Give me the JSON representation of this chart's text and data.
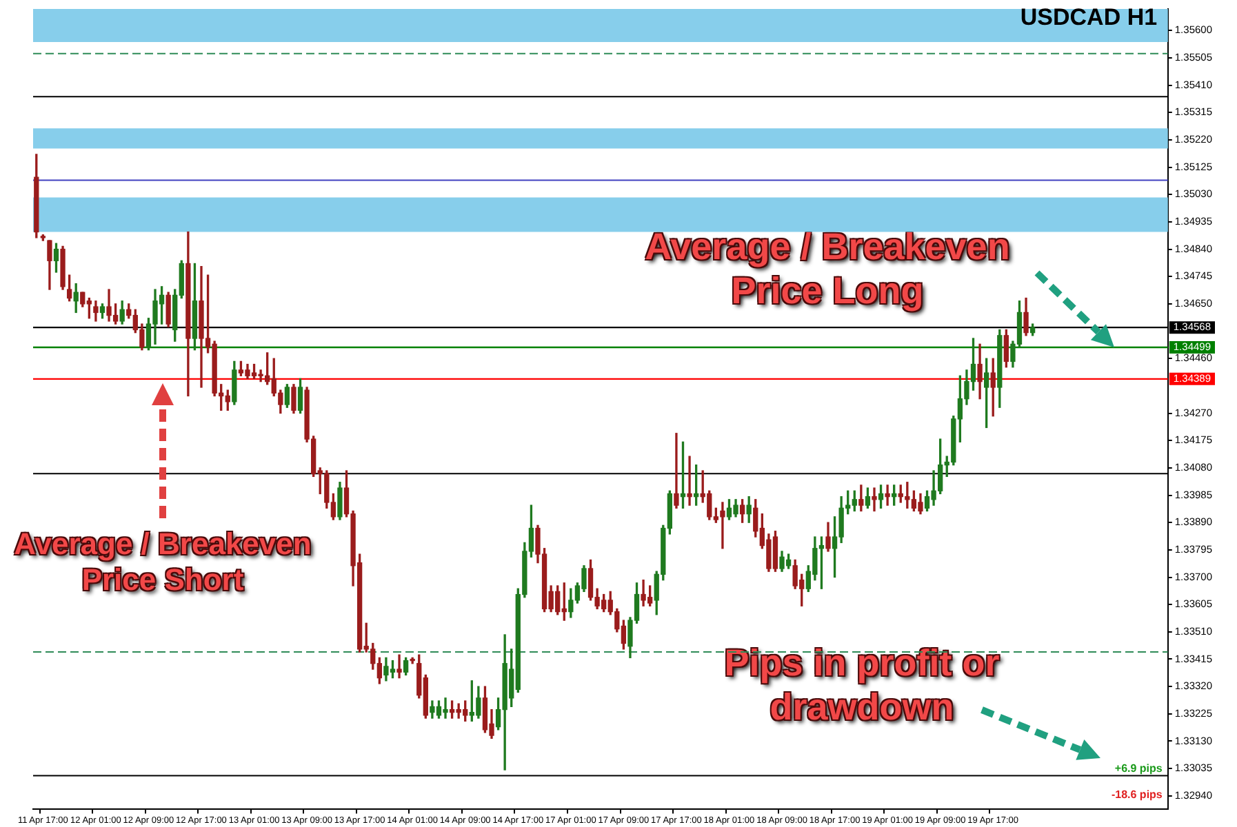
{
  "chart_data": {
    "type": "candlestick",
    "title": "USDCAD H1",
    "categories": [
      null,
      "11 Apr 17:00",
      null,
      null,
      null,
      null,
      null,
      null,
      null,
      "12 Apr 01:00",
      null,
      null,
      null,
      null,
      null,
      null,
      null,
      "12 Apr 09:00",
      null,
      null,
      null,
      null,
      null,
      null,
      null,
      "12 Apr 17:00",
      null,
      null,
      null,
      null,
      null,
      null,
      null,
      "13 Apr 01:00",
      null,
      null,
      null,
      null,
      null,
      null,
      null,
      "13 Apr 09:00",
      null,
      null,
      null,
      null,
      null,
      null,
      null,
      "13 Apr 17:00",
      null,
      null,
      null,
      null,
      null,
      null,
      null,
      "14 Apr 01:00",
      null,
      null,
      null,
      null,
      null,
      null,
      null,
      "14 Apr 09:00",
      null,
      null,
      null,
      null,
      null,
      null,
      null,
      "14 Apr 17:00",
      null,
      null,
      null,
      null,
      null,
      null,
      null,
      "17 Apr 01:00",
      null,
      null,
      null,
      null,
      null,
      null,
      null,
      "17 Apr 09:00",
      null,
      null,
      null,
      null,
      null,
      null,
      null,
      "17 Apr 17:00",
      null,
      null,
      null,
      null,
      null,
      null,
      null,
      "18 Apr 01:00",
      null,
      null,
      null,
      null,
      null,
      null,
      null,
      "18 Apr 09:00",
      null,
      null,
      null,
      null,
      null,
      null,
      null,
      "18 Apr 17:00",
      null,
      null,
      null,
      null,
      null,
      null,
      null,
      "19 Apr 01:00",
      null,
      null,
      null,
      null,
      null,
      null,
      null,
      "19 Apr 09:00",
      null,
      null,
      null,
      null,
      null,
      null,
      null,
      "19 Apr 17:00",
      null,
      null,
      null,
      null,
      null,
      null,
      null,
      null,
      null,
      null,
      null,
      null,
      null,
      null,
      null,
      null,
      null,
      null,
      null,
      null,
      null,
      null,
      null,
      null,
      null,
      null
    ],
    "ohlc": [
      [
        1.3509,
        1.3517,
        1.3488,
        1.349
      ],
      [
        1.3488,
        1.3489,
        1.3487,
        1.3488
      ],
      [
        1.3487,
        1.3487,
        1.347,
        1.348
      ],
      [
        1.348,
        1.3486,
        1.3476,
        1.3484
      ],
      [
        1.3484,
        1.3485,
        1.347,
        1.3471
      ],
      [
        1.347,
        1.3475,
        1.3466,
        1.3467
      ],
      [
        1.3466,
        1.3472,
        1.3462,
        1.3469
      ],
      [
        1.3469,
        1.3469,
        1.3464,
        1.3465
      ],
      [
        1.3466,
        1.3467,
        1.346,
        1.3465
      ],
      [
        1.3464,
        1.3466,
        1.3459,
        1.3462
      ],
      [
        1.3462,
        1.3465,
        1.346,
        1.3464
      ],
      [
        1.3464,
        1.347,
        1.3459,
        1.3461
      ],
      [
        1.3461,
        1.3465,
        1.3458,
        1.3459
      ],
      [
        1.3459,
        1.3466,
        1.3458,
        1.3463
      ],
      [
        1.3463,
        1.3465,
        1.346,
        1.3461
      ],
      [
        1.3461,
        1.3463,
        1.3455,
        1.3456
      ],
      [
        1.3456,
        1.3458,
        1.3449,
        1.345
      ],
      [
        1.345,
        1.346,
        1.3449,
        1.3458
      ],
      [
        1.3458,
        1.347,
        1.3451,
        1.3466
      ],
      [
        1.3465,
        1.3471,
        1.3458,
        1.3468
      ],
      [
        1.3468,
        1.3469,
        1.3457,
        1.3458
      ],
      [
        1.3456,
        1.347,
        1.3452,
        1.3468
      ],
      [
        1.3468,
        1.348,
        1.3467,
        1.3479
      ],
      [
        1.3479,
        1.349,
        1.3433,
        1.3453
      ],
      [
        1.3453,
        1.3479,
        1.3449,
        1.3466
      ],
      [
        1.3466,
        1.3478,
        1.3436,
        1.3453
      ],
      [
        1.3453,
        1.3475,
        1.3448,
        1.345
      ],
      [
        1.3451,
        1.3452,
        1.3433,
        1.3434
      ],
      [
        1.3434,
        1.3437,
        1.3428,
        1.3433
      ],
      [
        1.3433,
        1.3435,
        1.3428,
        1.3431
      ],
      [
        1.3431,
        1.3445,
        1.343,
        1.3442
      ],
      [
        1.3442,
        1.3445,
        1.344,
        1.3441
      ],
      [
        1.3442,
        1.3444,
        1.3439,
        1.344
      ],
      [
        1.3441,
        1.3444,
        1.3439,
        1.344
      ],
      [
        1.344,
        1.3442,
        1.3438,
        1.344
      ],
      [
        1.344,
        1.3448,
        1.3437,
        1.3438
      ],
      [
        1.3439,
        1.3446,
        1.3433,
        1.3434
      ],
      [
        1.3434,
        1.3435,
        1.3427,
        1.343
      ],
      [
        1.343,
        1.3437,
        1.3429,
        1.3436
      ],
      [
        1.3436,
        1.3437,
        1.3427,
        1.3428
      ],
      [
        1.3428,
        1.3439,
        1.3427,
        1.3436
      ],
      [
        1.3435,
        1.3436,
        1.3417,
        1.3418
      ],
      [
        1.3418,
        1.3419,
        1.3405,
        1.3406
      ],
      [
        1.3407,
        1.3408,
        1.3399,
        1.3406
      ],
      [
        1.3406,
        1.3407,
        1.3394,
        1.3396
      ],
      [
        1.3396,
        1.3399,
        1.339,
        1.3391
      ],
      [
        1.3391,
        1.3403,
        1.339,
        1.3401
      ],
      [
        1.3401,
        1.3407,
        1.3391,
        1.3392
      ],
      [
        1.3392,
        1.3393,
        1.3367,
        1.3374
      ],
      [
        1.3375,
        1.3378,
        1.3344,
        1.3345
      ],
      [
        1.3346,
        1.3354,
        1.3344,
        1.3345
      ],
      [
        1.3345,
        1.3347,
        1.3338,
        1.334
      ],
      [
        1.334,
        1.3342,
        1.3333,
        1.3335
      ],
      [
        1.3336,
        1.3342,
        1.3334,
        1.3339
      ],
      [
        1.3337,
        1.3341,
        1.3335,
        1.3338
      ],
      [
        1.3338,
        1.3343,
        1.3335,
        1.3337
      ],
      [
        1.3337,
        1.3342,
        1.3336,
        1.3341
      ],
      [
        1.3341,
        1.3342,
        1.334,
        1.3341
      ],
      [
        1.334,
        1.3343,
        1.3328,
        1.3329
      ],
      [
        1.3335,
        1.3336,
        1.3321,
        1.3322
      ],
      [
        1.3323,
        1.3327,
        1.3321,
        1.3325
      ],
      [
        1.3322,
        1.3327,
        1.3321,
        1.3325
      ],
      [
        1.3323,
        1.3328,
        1.3321,
        1.3324
      ],
      [
        1.3324,
        1.3327,
        1.3321,
        1.3323
      ],
      [
        1.3324,
        1.3326,
        1.3321,
        1.3323
      ],
      [
        1.3324,
        1.3327,
        1.332,
        1.3322
      ],
      [
        1.3322,
        1.3334,
        1.332,
        1.3323
      ],
      [
        1.3322,
        1.3332,
        1.3321,
        1.3328
      ],
      [
        1.3328,
        1.3332,
        1.3316,
        1.3317
      ],
      [
        1.3319,
        1.3324,
        1.3314,
        1.3315
      ],
      [
        1.3318,
        1.3328,
        1.3317,
        1.3324
      ],
      [
        1.3324,
        1.335,
        1.3303,
        1.334
      ],
      [
        1.3328,
        1.3345,
        1.3325,
        1.3338
      ],
      [
        1.3331,
        1.3366,
        1.333,
        1.3364
      ],
      [
        1.3364,
        1.3382,
        1.3363,
        1.3379
      ],
      [
        1.3379,
        1.3395,
        1.3377,
        1.3387
      ],
      [
        1.3387,
        1.3388,
        1.3375,
        1.3378
      ],
      [
        1.3378,
        1.338,
        1.3358,
        1.3359
      ],
      [
        1.3365,
        1.3367,
        1.3358,
        1.3359
      ],
      [
        1.3365,
        1.3367,
        1.3357,
        1.3358
      ],
      [
        1.3359,
        1.3368,
        1.3355,
        1.3358
      ],
      [
        1.3358,
        1.3366,
        1.3356,
        1.3362
      ],
      [
        1.3362,
        1.3368,
        1.3361,
        1.3367
      ],
      [
        1.3366,
        1.3374,
        1.3365,
        1.3373
      ],
      [
        1.3373,
        1.3376,
        1.3362,
        1.3363
      ],
      [
        1.3363,
        1.3366,
        1.3359,
        1.336
      ],
      [
        1.3362,
        1.3364,
        1.3358,
        1.3359
      ],
      [
        1.3362,
        1.3365,
        1.3357,
        1.3358
      ],
      [
        1.3358,
        1.3359,
        1.3351,
        1.3352
      ],
      [
        1.3353,
        1.3355,
        1.3345,
        1.3347
      ],
      [
        1.3346,
        1.3356,
        1.3342,
        1.3355
      ],
      [
        1.3355,
        1.3368,
        1.3354,
        1.3364
      ],
      [
        1.3364,
        1.3369,
        1.336,
        1.3362
      ],
      [
        1.3363,
        1.3367,
        1.336,
        1.3361
      ],
      [
        1.3362,
        1.3372,
        1.3357,
        1.3371
      ],
      [
        1.3371,
        1.3388,
        1.3369,
        1.3387
      ],
      [
        1.3387,
        1.34,
        1.3385,
        1.3399
      ],
      [
        1.3399,
        1.342,
        1.3394,
        1.3395
      ],
      [
        1.3398,
        1.3417,
        1.3394,
        1.3399
      ],
      [
        1.3399,
        1.3412,
        1.3395,
        1.3398
      ],
      [
        1.3398,
        1.3409,
        1.3395,
        1.3399
      ],
      [
        1.3399,
        1.3407,
        1.3396,
        1.3398
      ],
      [
        1.3399,
        1.34,
        1.339,
        1.3391
      ],
      [
        1.3391,
        1.3394,
        1.3389,
        1.339
      ],
      [
        1.3393,
        1.3396,
        1.338,
        1.3391
      ],
      [
        1.3391,
        1.3397,
        1.339,
        1.3394
      ],
      [
        1.3392,
        1.3397,
        1.3391,
        1.3395
      ],
      [
        1.3395,
        1.3397,
        1.3389,
        1.3392
      ],
      [
        1.3392,
        1.3398,
        1.3389,
        1.3395
      ],
      [
        1.3394,
        1.3397,
        1.3384,
        1.3386
      ],
      [
        1.3387,
        1.3392,
        1.338,
        1.3381
      ],
      [
        1.3383,
        1.3385,
        1.3372,
        1.3373
      ],
      [
        1.3384,
        1.3386,
        1.3372,
        1.3373
      ],
      [
        1.3373,
        1.3379,
        1.3372,
        1.3377
      ],
      [
        1.3374,
        1.3378,
        1.3373,
        1.3376
      ],
      [
        1.3374,
        1.3376,
        1.3366,
        1.3367
      ],
      [
        1.3369,
        1.3371,
        1.336,
        1.3366
      ],
      [
        1.3366,
        1.3374,
        1.3365,
        1.3372
      ],
      [
        1.3371,
        1.3384,
        1.3369,
        1.338
      ],
      [
        1.338,
        1.3384,
        1.3366,
        1.3381
      ],
      [
        1.3384,
        1.3389,
        1.3379,
        1.338
      ],
      [
        1.338,
        1.3391,
        1.337,
        1.3384
      ],
      [
        1.3384,
        1.3398,
        1.3382,
        1.3394
      ],
      [
        1.3394,
        1.34,
        1.3392,
        1.3395
      ],
      [
        1.3395,
        1.34,
        1.3393,
        1.3397
      ],
      [
        1.3397,
        1.3402,
        1.3393,
        1.3395
      ],
      [
        1.3395,
        1.3401,
        1.3394,
        1.3398
      ],
      [
        1.3398,
        1.3401,
        1.3393,
        1.3397
      ],
      [
        1.3397,
        1.3402,
        1.3394,
        1.3399
      ],
      [
        1.3399,
        1.3402,
        1.3395,
        1.3398
      ],
      [
        1.3398,
        1.3402,
        1.3395,
        1.3399
      ],
      [
        1.3399,
        1.3402,
        1.3396,
        1.3398
      ],
      [
        1.3398,
        1.3403,
        1.3394,
        1.3397
      ],
      [
        1.3397,
        1.34,
        1.3393,
        1.3394
      ],
      [
        1.3396,
        1.3399,
        1.3392,
        1.3393
      ],
      [
        1.3394,
        1.34,
        1.3393,
        1.3398
      ],
      [
        1.3397,
        1.3407,
        1.3395,
        1.34
      ],
      [
        1.34,
        1.3418,
        1.3399,
        1.3409
      ],
      [
        1.3409,
        1.3412,
        1.3405,
        1.341
      ],
      [
        1.341,
        1.3426,
        1.3409,
        1.3425
      ],
      [
        1.3425,
        1.344,
        1.3417,
        1.3432
      ],
      [
        1.3432,
        1.3442,
        1.343,
        1.3438
      ],
      [
        1.3438,
        1.3453,
        1.3435,
        1.3444
      ],
      [
        1.3444,
        1.3451,
        1.3432,
        1.3438
      ],
      [
        1.3436,
        1.3446,
        1.3422,
        1.3441
      ],
      [
        1.3441,
        1.3446,
        1.3426,
        1.3436
      ],
      [
        1.3436,
        1.3456,
        1.3429,
        1.3454
      ],
      [
        1.3454,
        1.3456,
        1.3443,
        1.3445
      ],
      [
        1.3445,
        1.3452,
        1.3443,
        1.3451
      ],
      [
        1.3451,
        1.3466,
        1.345,
        1.3462
      ],
      [
        1.3462,
        1.3467,
        1.3454,
        1.3455
      ],
      [
        1.3455,
        1.3458,
        1.3454,
        1.34568
      ],
      null,
      null,
      null,
      null,
      null,
      null,
      null,
      null,
      null,
      null,
      null,
      null,
      null,
      null,
      null,
      null,
      null,
      null,
      null,
      null
    ],
    "colors": [
      "#9a1c1c",
      "#9a1c1c",
      "#9a1c1c",
      "#1f7a1f",
      "#9a1c1c",
      "#9a1c1c",
      "#1f7a1f",
      "#9a1c1c",
      "#9a1c1c",
      "#9a1c1c",
      "#1f7a1f",
      "#9a1c1c",
      "#9a1c1c",
      "#1f7a1f",
      "#9a1c1c",
      "#9a1c1c",
      "#9a1c1c",
      "#1f7a1f",
      "#1f7a1f",
      "#1f7a1f",
      "#9a1c1c",
      "#1f7a1f",
      "#1f7a1f",
      "#9a1c1c",
      "#1f7a1f",
      "#9a1c1c",
      "#9a1c1c",
      "#9a1c1c",
      "#9a1c1c",
      "#9a1c1c",
      "#1f7a1f",
      "#9a1c1c",
      "#9a1c1c",
      "#9a1c1c",
      "#9a1c1c",
      "#9a1c1c",
      "#9a1c1c",
      "#9a1c1c",
      "#1f7a1f",
      "#9a1c1c",
      "#1f7a1f",
      "#9a1c1c",
      "#9a1c1c",
      "#9a1c1c",
      "#9a1c1c",
      "#9a1c1c",
      "#1f7a1f",
      "#9a1c1c",
      "#9a1c1c",
      "#9a1c1c",
      "#9a1c1c",
      "#9a1c1c",
      "#9a1c1c",
      "#1f7a1f",
      "#1f7a1f",
      "#9a1c1c",
      "#1f7a1f",
      "#9a1c1c",
      "#9a1c1c",
      "#9a1c1c",
      "#1f7a1f",
      "#1f7a1f",
      "#1f7a1f",
      "#9a1c1c",
      "#9a1c1c",
      "#9a1c1c",
      "#1f7a1f",
      "#1f7a1f",
      "#9a1c1c",
      "#9a1c1c",
      "#1f7a1f",
      "#1f7a1f",
      "#1f7a1f",
      "#1f7a1f",
      "#1f7a1f",
      "#1f7a1f",
      "#9a1c1c",
      "#9a1c1c",
      "#9a1c1c",
      "#9a1c1c",
      "#9a1c1c",
      "#1f7a1f",
      "#1f7a1f",
      "#1f7a1f",
      "#9a1c1c",
      "#9a1c1c",
      "#9a1c1c",
      "#9a1c1c",
      "#9a1c1c",
      "#9a1c1c",
      "#1f7a1f",
      "#1f7a1f",
      "#9a1c1c",
      "#9a1c1c",
      "#1f7a1f",
      "#1f7a1f",
      "#1f7a1f",
      "#9a1c1c",
      "#1f7a1f",
      "#9a1c1c",
      "#1f7a1f",
      "#9a1c1c",
      "#9a1c1c",
      "#9a1c1c",
      "#9a1c1c",
      "#1f7a1f",
      "#1f7a1f",
      "#9a1c1c",
      "#1f7a1f",
      "#9a1c1c",
      "#9a1c1c",
      "#9a1c1c",
      "#9a1c1c",
      "#1f7a1f",
      "#1f7a1f",
      "#9a1c1c",
      "#9a1c1c",
      "#1f7a1f",
      "#1f7a1f",
      "#1f7a1f",
      "#9a1c1c",
      "#1f7a1f",
      "#1f7a1f",
      "#1f7a1f",
      "#1f7a1f",
      "#9a1c1c",
      "#1f7a1f",
      "#9a1c1c",
      "#1f7a1f",
      "#9a1c1c",
      "#1f7a1f",
      "#9a1c1c",
      "#9a1c1c",
      "#9a1c1c",
      "#9a1c1c",
      "#1f7a1f",
      "#1f7a1f",
      "#1f7a1f",
      "#1f7a1f",
      "#1f7a1f",
      "#1f7a1f",
      "#1f7a1f",
      "#1f7a1f",
      "#9a1c1c",
      "#1f7a1f",
      "#9a1c1c",
      "#1f7a1f",
      "#9a1c1c",
      "#1f7a1f",
      "#1f7a1f",
      "#9a1c1c",
      "#1f7a1f",
      null,
      null,
      null,
      null,
      null,
      null,
      null,
      null,
      null,
      null,
      null,
      null,
      null,
      null,
      null,
      null,
      null,
      null,
      null,
      null
    ],
    "ylim": [
      1.32893,
      1.35675
    ],
    "yticks": [
      {
        "value": 1.3294,
        "label": "1.32940"
      },
      {
        "value": 1.33035,
        "label": "1.33035"
      },
      {
        "value": 1.3313,
        "label": "1.33130"
      },
      {
        "value": 1.33225,
        "label": "1.33225"
      },
      {
        "value": 1.3332,
        "label": "1.33320"
      },
      {
        "value": 1.33415,
        "label": "1.33415"
      },
      {
        "value": 1.3351,
        "label": "1.33510"
      },
      {
        "value": 1.33605,
        "label": "1.33605"
      },
      {
        "value": 1.337,
        "label": "1.33700"
      },
      {
        "value": 1.33795,
        "label": "1.33795"
      },
      {
        "value": 1.3389,
        "label": "1.33890"
      },
      {
        "value": 1.33985,
        "label": "1.33985"
      },
      {
        "value": 1.3408,
        "label": "1.34080"
      },
      {
        "value": 1.34175,
        "label": "1.34175"
      },
      {
        "value": 1.3427,
        "label": "1.34270"
      },
      {
        "value": 1.3446,
        "label": "1.34460"
      },
      {
        "value": 1.3465,
        "label": "1.34650"
      },
      {
        "value": 1.34745,
        "label": "1.34745"
      },
      {
        "value": 1.3484,
        "label": "1.34840"
      },
      {
        "value": 1.34935,
        "label": "1.34935"
      },
      {
        "value": 1.3503,
        "label": "1.35030"
      },
      {
        "value": 1.35125,
        "label": "1.35125"
      },
      {
        "value": 1.3522,
        "label": "1.35220"
      },
      {
        "value": 1.35315,
        "label": "1.35315"
      },
      {
        "value": 1.3541,
        "label": "1.35410"
      },
      {
        "value": 1.35505,
        "label": "1.35505"
      },
      {
        "value": 1.356,
        "label": "1.35600"
      }
    ],
    "ref_lines": [
      {
        "axis": "y",
        "value": 1.34568,
        "label": "1.34568",
        "color": "#000000"
      },
      {
        "axis": "y",
        "value": 1.34499,
        "label": "1.34499",
        "color": "#008000"
      },
      {
        "axis": "y",
        "value": 1.34389,
        "label": "1.34389",
        "color": "#ff0000"
      },
      {
        "axis": "y",
        "value": 1.3537,
        "color": "#000000"
      },
      {
        "axis": "y",
        "value": 1.3406,
        "color": "#000000"
      },
      {
        "axis": "y",
        "value": 1.3301,
        "color": "#000000"
      },
      {
        "axis": "y",
        "value": 1.3508,
        "color": "#4040c0"
      },
      {
        "axis": "y",
        "value": 1.3552,
        "color": "#2e8b57",
        "line_style": "dashed"
      },
      {
        "axis": "y",
        "value": 1.3344,
        "color": "#2e8b57",
        "line_style": "dashed"
      }
    ],
    "bands": [
      {
        "axis": "y",
        "from": 1.3556,
        "to": 1.35675,
        "color": "#87ceeb"
      },
      {
        "axis": "y",
        "from": 1.3519,
        "to": 1.3526,
        "color": "#87ceeb"
      },
      {
        "axis": "y",
        "from": 1.349,
        "to": 1.3502,
        "color": "#87ceeb"
      }
    ],
    "annotations": [
      {
        "text": "Average / Breakeven Price Long",
        "y": 1.34499
      },
      "Average / Breakeven Price Short",
      "Pips in profit or drawdown",
      "+6.9 pips",
      "-18.6 pips"
    ],
    "grid": false,
    "legend": false
  }
}
